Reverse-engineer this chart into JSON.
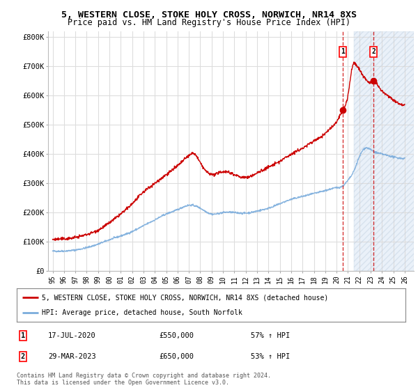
{
  "title_line1": "5, WESTERN CLOSE, STOKE HOLY CROSS, NORWICH, NR14 8XS",
  "title_line2": "Price paid vs. HM Land Registry's House Price Index (HPI)",
  "ylabel_ticks": [
    "£0",
    "£100K",
    "£200K",
    "£300K",
    "£400K",
    "£500K",
    "£600K",
    "£700K",
    "£800K"
  ],
  "ytick_values": [
    0,
    100000,
    200000,
    300000,
    400000,
    500000,
    600000,
    700000,
    800000
  ],
  "ylim": [
    0,
    820000
  ],
  "xlim_start": 1994.6,
  "xlim_end": 2026.8,
  "xtick_years": [
    1995,
    1996,
    1997,
    1998,
    1999,
    2000,
    2001,
    2002,
    2003,
    2004,
    2005,
    2006,
    2007,
    2008,
    2009,
    2010,
    2011,
    2012,
    2013,
    2014,
    2015,
    2016,
    2017,
    2018,
    2019,
    2020,
    2021,
    2022,
    2023,
    2024,
    2025,
    2026
  ],
  "house_color": "#cc0000",
  "hpi_color": "#7aacdc",
  "sale1_x": 2020.54,
  "sale1_y": 550000,
  "sale1_label": "1",
  "sale2_x": 2023.25,
  "sale2_y": 650000,
  "sale2_label": "2",
  "annotation1_date": "17-JUL-2020",
  "annotation1_price": "£550,000",
  "annotation1_hpi": "57% ↑ HPI",
  "annotation2_date": "29-MAR-2023",
  "annotation2_price": "£650,000",
  "annotation2_hpi": "53% ↑ HPI",
  "legend_line1": "5, WESTERN CLOSE, STOKE HOLY CROSS, NORWICH, NR14 8XS (detached house)",
  "legend_line2": "HPI: Average price, detached house, South Norfolk",
  "footnote": "Contains HM Land Registry data © Crown copyright and database right 2024.\nThis data is licensed under the Open Government Licence v3.0.",
  "shaded_region_start": 2021.5,
  "shaded_region_end": 2026.8,
  "background_color": "#ffffff",
  "plot_bg_color": "#ffffff"
}
